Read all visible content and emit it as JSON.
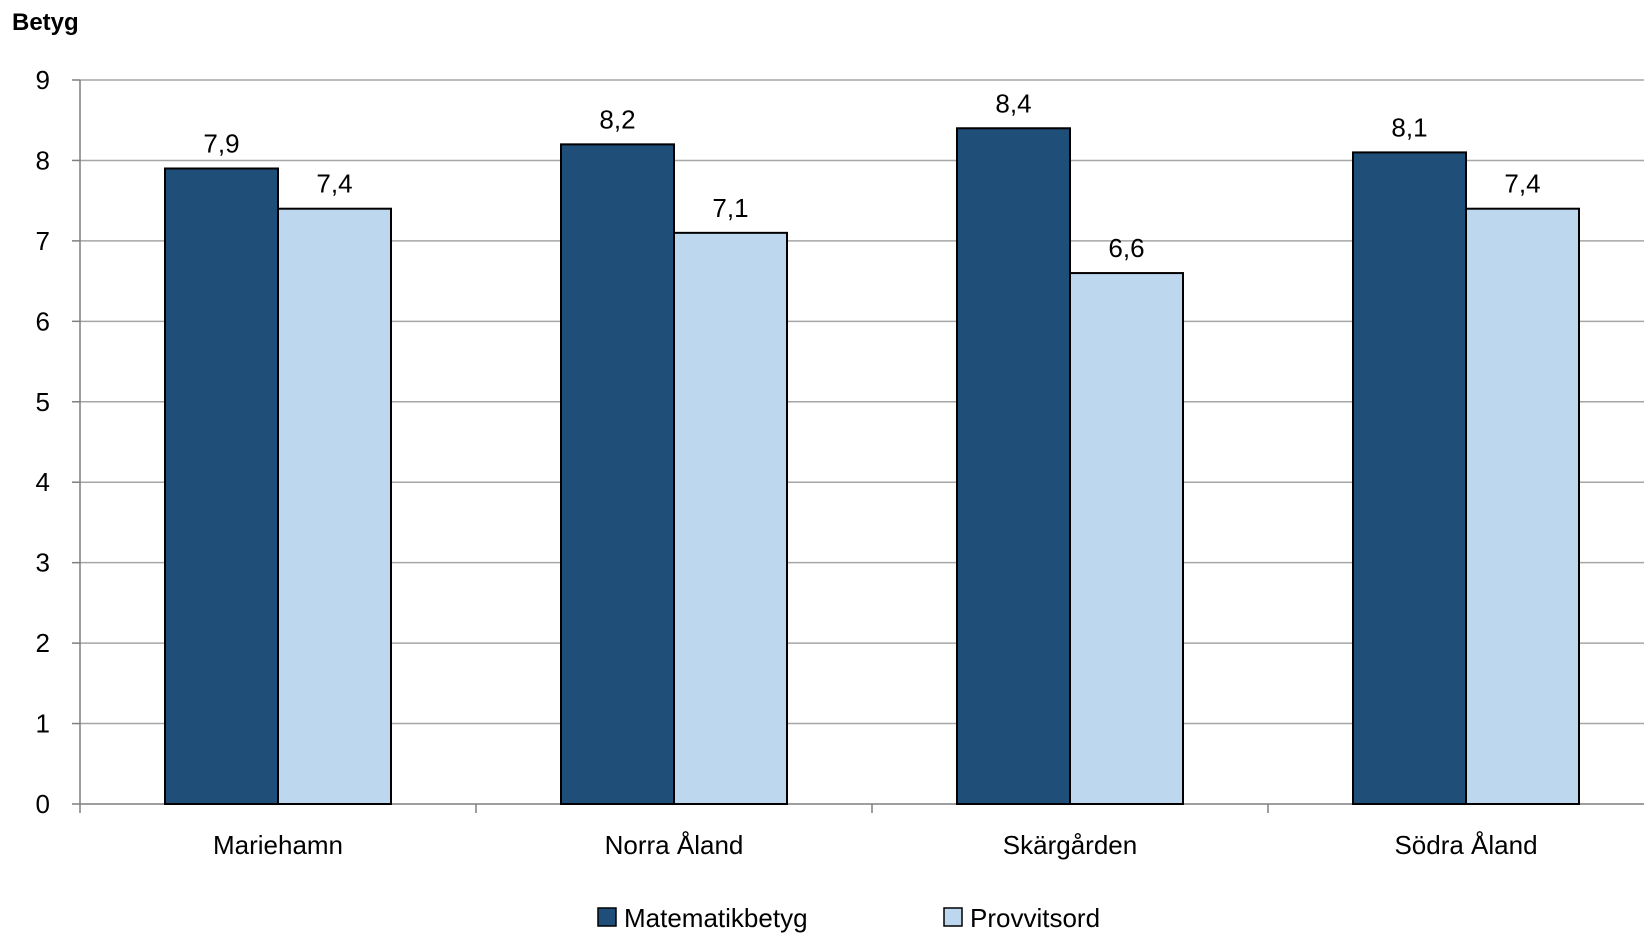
{
  "chart_data": {
    "type": "bar",
    "title": "",
    "ylabel": "Betyg",
    "xlabel": "",
    "ylim": [
      0,
      9
    ],
    "yticks": [
      0,
      1,
      2,
      3,
      4,
      5,
      6,
      7,
      8,
      9
    ],
    "grid": true,
    "legend_position": "bottom",
    "categories": [
      "Mariehamn",
      "Norra Åland",
      "Skärgården",
      "Södra Åland"
    ],
    "series": [
      {
        "name": "Matematikbetyg",
        "color": "#1F4E79",
        "values": [
          7.9,
          8.2,
          8.4,
          8.1
        ],
        "labels": [
          "7,9",
          "8,2",
          "8,4",
          "8,1"
        ]
      },
      {
        "name": "Provvitsord",
        "color": "#BDD7EE",
        "values": [
          7.4,
          7.1,
          6.6,
          7.4
        ],
        "labels": [
          "7,4",
          "7,1",
          "6,6",
          "7,4"
        ]
      }
    ]
  }
}
